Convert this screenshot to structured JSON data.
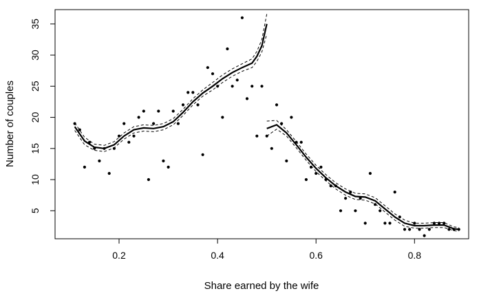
{
  "chart_data": {
    "type": "scatter",
    "title": "",
    "xlabel": "Share earned by the wife",
    "ylabel": "Number of couples",
    "xlim": [
      0.07,
      0.91
    ],
    "ylim": [
      0.5,
      37.3
    ],
    "xticks": [
      {
        "value": 0.2,
        "label": "0.2"
      },
      {
        "value": 0.4,
        "label": "0.4"
      },
      {
        "value": 0.6,
        "label": "0.6"
      },
      {
        "value": 0.8,
        "label": "0.8"
      }
    ],
    "yticks": [
      {
        "value": 5,
        "label": "5"
      },
      {
        "value": 10,
        "label": "10"
      },
      {
        "value": 15,
        "label": "15"
      },
      {
        "value": 20,
        "label": "20"
      },
      {
        "value": 25,
        "label": "25"
      },
      {
        "value": 30,
        "label": "30"
      },
      {
        "value": 35,
        "label": "35"
      }
    ],
    "grid": false,
    "points": [
      [
        0.11,
        19
      ],
      [
        0.12,
        18
      ],
      [
        0.13,
        12
      ],
      [
        0.14,
        16
      ],
      [
        0.15,
        15
      ],
      [
        0.16,
        13
      ],
      [
        0.17,
        15
      ],
      [
        0.18,
        11
      ],
      [
        0.19,
        15
      ],
      [
        0.2,
        17
      ],
      [
        0.21,
        19
      ],
      [
        0.22,
        16
      ],
      [
        0.23,
        17
      ],
      [
        0.24,
        20
      ],
      [
        0.25,
        21
      ],
      [
        0.26,
        10
      ],
      [
        0.27,
        19
      ],
      [
        0.28,
        21
      ],
      [
        0.29,
        13
      ],
      [
        0.3,
        12
      ],
      [
        0.31,
        21
      ],
      [
        0.32,
        19
      ],
      [
        0.33,
        22
      ],
      [
        0.34,
        24
      ],
      [
        0.35,
        24
      ],
      [
        0.36,
        22
      ],
      [
        0.37,
        14
      ],
      [
        0.38,
        28
      ],
      [
        0.39,
        27
      ],
      [
        0.4,
        25
      ],
      [
        0.41,
        20
      ],
      [
        0.42,
        31
      ],
      [
        0.43,
        25
      ],
      [
        0.44,
        26
      ],
      [
        0.45,
        36
      ],
      [
        0.46,
        23
      ],
      [
        0.47,
        25
      ],
      [
        0.48,
        17
      ],
      [
        0.49,
        25
      ],
      [
        0.5,
        17
      ],
      [
        0.51,
        15
      ],
      [
        0.52,
        22
      ],
      [
        0.53,
        19
      ],
      [
        0.54,
        13
      ],
      [
        0.55,
        20
      ],
      [
        0.56,
        16
      ],
      [
        0.57,
        16
      ],
      [
        0.58,
        10
      ],
      [
        0.59,
        12
      ],
      [
        0.6,
        11
      ],
      [
        0.61,
        12
      ],
      [
        0.62,
        10
      ],
      [
        0.63,
        9
      ],
      [
        0.64,
        9
      ],
      [
        0.65,
        5
      ],
      [
        0.66,
        7
      ],
      [
        0.67,
        8
      ],
      [
        0.68,
        5
      ],
      [
        0.69,
        7
      ],
      [
        0.7,
        3
      ],
      [
        0.71,
        11
      ],
      [
        0.72,
        6
      ],
      [
        0.73,
        5
      ],
      [
        0.74,
        3
      ],
      [
        0.75,
        3
      ],
      [
        0.76,
        8
      ],
      [
        0.77,
        4
      ],
      [
        0.78,
        2
      ],
      [
        0.79,
        2
      ],
      [
        0.8,
        3
      ],
      [
        0.81,
        2
      ],
      [
        0.82,
        1
      ],
      [
        0.83,
        2
      ],
      [
        0.84,
        3
      ],
      [
        0.85,
        3
      ],
      [
        0.86,
        3
      ],
      [
        0.87,
        2
      ],
      [
        0.88,
        2
      ],
      [
        0.89,
        2
      ]
    ],
    "fit_left": {
      "x": [
        0.11,
        0.13,
        0.15,
        0.17,
        0.19,
        0.21,
        0.23,
        0.25,
        0.27,
        0.29,
        0.31,
        0.33,
        0.35,
        0.37,
        0.39,
        0.41,
        0.43,
        0.45,
        0.47,
        0.48,
        0.49,
        0.5
      ],
      "y": [
        18.5,
        16.2,
        15.2,
        15.0,
        15.6,
        17.0,
        18.0,
        18.3,
        18.2,
        18.5,
        19.3,
        20.8,
        22.5,
        23.9,
        25.0,
        26.2,
        27.2,
        28.0,
        28.7,
        29.8,
        31.5,
        35.0
      ],
      "band": [
        0.6,
        0.6,
        0.5,
        0.5,
        0.5,
        0.5,
        0.5,
        0.5,
        0.5,
        0.5,
        0.5,
        0.5,
        0.5,
        0.5,
        0.6,
        0.6,
        0.6,
        0.6,
        0.7,
        0.8,
        1.0,
        1.6
      ]
    },
    "fit_right": {
      "x": [
        0.5,
        0.52,
        0.54,
        0.56,
        0.58,
        0.6,
        0.62,
        0.64,
        0.66,
        0.68,
        0.7,
        0.72,
        0.74,
        0.76,
        0.78,
        0.8,
        0.82,
        0.84,
        0.86,
        0.88,
        0.89
      ],
      "y": [
        18.2,
        18.8,
        17.5,
        15.6,
        13.6,
        11.8,
        10.3,
        9.0,
        8.0,
        7.3,
        7.2,
        6.6,
        5.3,
        4.0,
        3.0,
        2.6,
        2.6,
        2.7,
        2.7,
        2.1,
        2.0
      ],
      "band": [
        1.2,
        0.7,
        0.5,
        0.5,
        0.5,
        0.5,
        0.5,
        0.5,
        0.5,
        0.5,
        0.5,
        0.5,
        0.5,
        0.5,
        0.5,
        0.4,
        0.4,
        0.4,
        0.4,
        0.3,
        0.3
      ]
    }
  }
}
